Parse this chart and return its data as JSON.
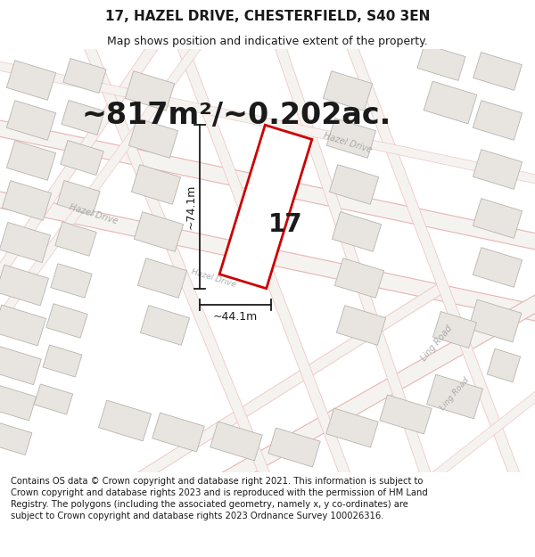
{
  "title": "17, HAZEL DRIVE, CHESTERFIELD, S40 3EN",
  "subtitle": "Map shows position and indicative extent of the property.",
  "area_text": "~817m²/~0.202ac.",
  "property_number": "17",
  "measure_vertical": "~74.1m",
  "measure_horizontal": "~44.1m",
  "footer_text": "Contains OS data © Crown copyright and database right 2021. This information is subject to Crown copyright and database rights 2023 and is reproduced with the permission of HM Land Registry. The polygons (including the associated geometry, namely x, y co-ordinates) are subject to Crown copyright and database rights 2023 Ordnance Survey 100026316.",
  "bg_color": "#ffffff",
  "map_bg": "#f8f7f5",
  "road_fill": "#f0eeea",
  "road_outline": "#e8b4b4",
  "road_outline_thin": "#f0c8c8",
  "building_fill": "#e8e5e0",
  "building_outline": "#b8b4ae",
  "property_edge": "#cc0000",
  "property_fill": "#ffffff",
  "text_color": "#1a1a1a",
  "meas_color": "#1a1a1a",
  "road_label_color": "#aaaaaa",
  "footer_color": "#1a1a1a",
  "title_fontsize": 11,
  "subtitle_fontsize": 9,
  "area_fontsize": 24,
  "number_fontsize": 20,
  "measure_fontsize": 9,
  "road_label_fontsize": 7,
  "footer_fontsize": 7.2
}
